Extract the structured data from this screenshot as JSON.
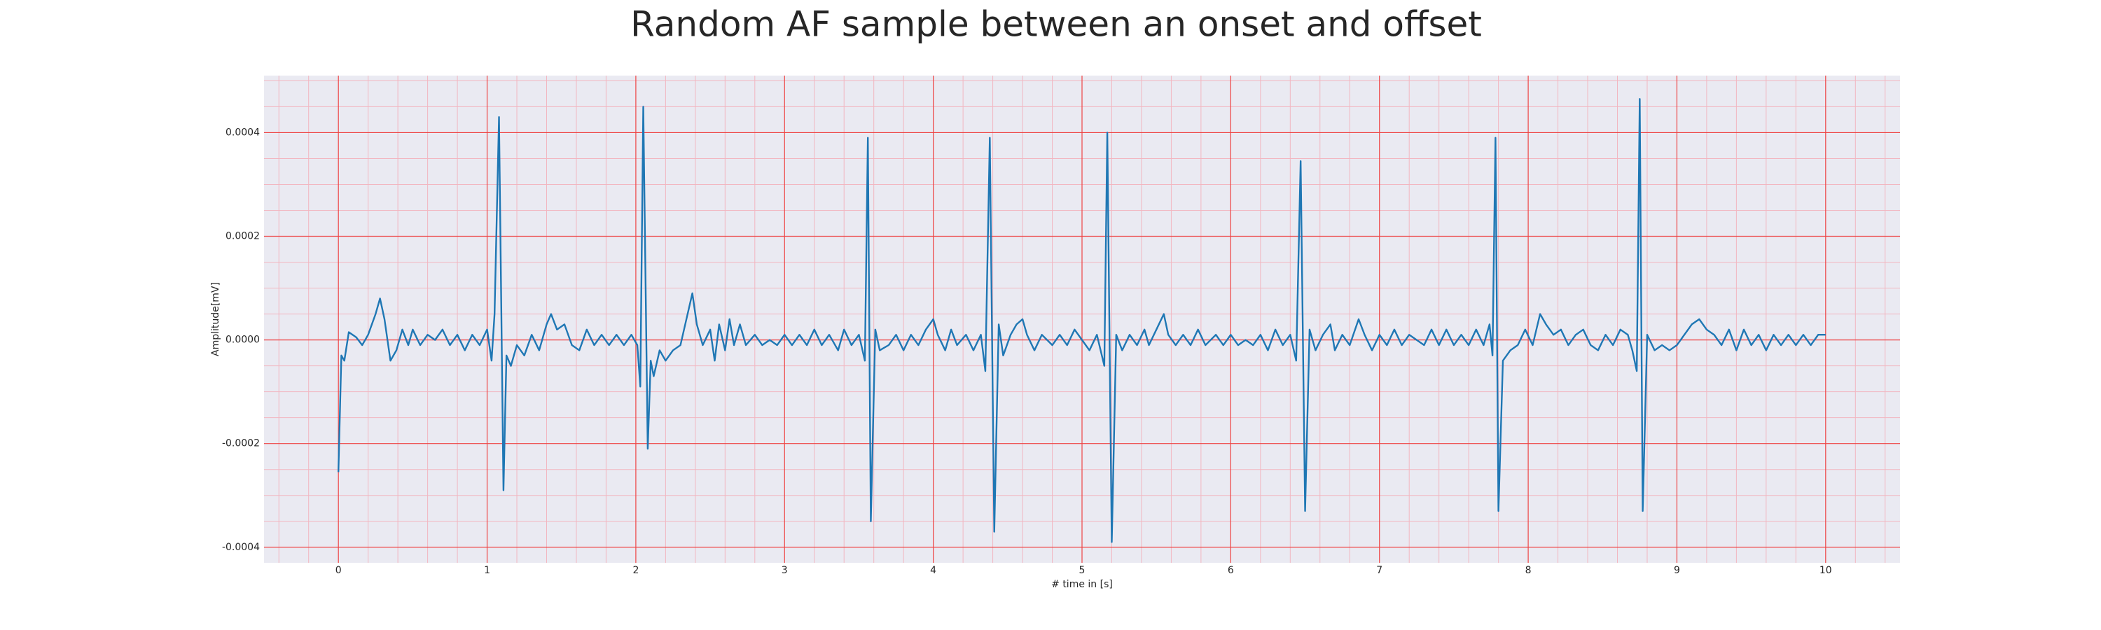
{
  "chart_data": {
    "type": "line",
    "title": "Random AF sample between an onset and offset",
    "xlabel": "# time in [s]",
    "ylabel": "Amplitude[mV]",
    "color": "#1f77b4",
    "grid": true,
    "minor_grid": true,
    "xlim": [
      -0.5,
      10.5
    ],
    "ylim": [
      -0.00043,
      0.00051
    ],
    "xticks": [
      0,
      1,
      2,
      3,
      4,
      5,
      6,
      7,
      8,
      9,
      10
    ],
    "yticks": [
      -0.0004,
      -0.0002,
      {
        "value": 0,
        "label": "0.0000"
      },
      0.0002,
      0.0004
    ],
    "xminorticks": [
      -0.4,
      -0.2,
      0.2,
      0.4,
      0.6,
      0.8,
      1.2,
      1.4,
      1.6,
      1.8,
      2.2,
      2.4,
      2.6,
      2.8,
      3.2,
      3.4,
      3.6,
      3.8,
      4.2,
      4.4,
      4.6,
      4.8,
      5.2,
      5.4,
      5.6,
      5.8,
      6.2,
      6.4,
      6.6,
      6.8,
      7.2,
      7.4,
      7.6,
      7.8,
      8.2,
      8.4,
      8.6,
      8.8,
      9.2,
      9.4,
      9.6,
      9.8,
      10.2,
      10.4
    ],
    "yminorticks": [
      -0.00035,
      -0.0003,
      -0.00025,
      -0.00015,
      -0.0001,
      -5e-05,
      5e-05,
      0.0001,
      0.00015,
      0.00025,
      0.0003,
      0.00035,
      0.00045,
      0.0005
    ],
    "x": [
      0,
      0.02,
      0.04,
      0.07,
      0.12,
      0.16,
      0.2,
      0.25,
      0.28,
      0.31,
      0.35,
      0.39,
      0.43,
      0.47,
      0.5,
      0.55,
      0.6,
      0.65,
      0.7,
      0.75,
      0.8,
      0.85,
      0.9,
      0.95,
      1.0,
      1.03,
      1.05,
      1.08,
      1.11,
      1.13,
      1.16,
      1.2,
      1.25,
      1.3,
      1.35,
      1.4,
      1.43,
      1.47,
      1.52,
      1.57,
      1.62,
      1.67,
      1.72,
      1.77,
      1.82,
      1.87,
      1.92,
      1.97,
      2.01,
      2.03,
      2.05,
      2.08,
      2.1,
      2.12,
      2.16,
      2.2,
      2.25,
      2.3,
      2.34,
      2.38,
      2.41,
      2.45,
      2.5,
      2.53,
      2.56,
      2.6,
      2.63,
      2.66,
      2.7,
      2.74,
      2.8,
      2.85,
      2.9,
      2.95,
      3.0,
      3.05,
      3.1,
      3.15,
      3.2,
      3.25,
      3.3,
      3.36,
      3.4,
      3.45,
      3.5,
      3.54,
      3.56,
      3.58,
      3.61,
      3.64,
      3.7,
      3.75,
      3.8,
      3.85,
      3.9,
      3.95,
      4.0,
      4.03,
      4.08,
      4.12,
      4.16,
      4.22,
      4.27,
      4.32,
      4.35,
      4.38,
      4.41,
      4.44,
      4.47,
      4.52,
      4.56,
      4.6,
      4.63,
      4.68,
      4.73,
      4.8,
      4.85,
      4.9,
      4.95,
      5.0,
      5.05,
      5.1,
      5.15,
      5.17,
      5.2,
      5.23,
      5.27,
      5.32,
      5.37,
      5.42,
      5.45,
      5.5,
      5.55,
      5.58,
      5.63,
      5.68,
      5.73,
      5.78,
      5.83,
      5.9,
      5.95,
      6.0,
      6.05,
      6.1,
      6.15,
      6.2,
      6.25,
      6.3,
      6.35,
      6.4,
      6.44,
      6.47,
      6.5,
      6.53,
      6.57,
      6.62,
      6.67,
      6.7,
      6.75,
      6.8,
      6.86,
      6.9,
      6.95,
      7.0,
      7.05,
      7.1,
      7.15,
      7.2,
      7.3,
      7.35,
      7.4,
      7.45,
      7.5,
      7.55,
      7.6,
      7.65,
      7.7,
      7.74,
      7.76,
      7.78,
      7.8,
      7.83,
      7.88,
      7.93,
      7.98,
      8.03,
      8.08,
      8.12,
      8.17,
      8.22,
      8.27,
      8.32,
      8.37,
      8.42,
      8.47,
      8.52,
      8.57,
      8.62,
      8.67,
      8.7,
      8.73,
      8.75,
      8.77,
      8.8,
      8.85,
      8.9,
      8.95,
      9.0,
      9.05,
      9.1,
      9.15,
      9.2,
      9.25,
      9.3,
      9.35,
      9.4,
      9.45,
      9.5,
      9.55,
      9.6,
      9.65,
      9.7,
      9.75,
      9.8,
      9.85,
      9.9,
      9.95,
      10.0
    ],
    "values": [
      -0.000255,
      -3e-05,
      -4e-05,
      1.5e-05,
      5e-06,
      -1e-05,
      1e-05,
      5e-05,
      8e-05,
      4e-05,
      -4e-05,
      -2e-05,
      2e-05,
      -1e-05,
      2e-05,
      -1e-05,
      1e-05,
      0,
      2e-05,
      -1e-05,
      1e-05,
      -2e-05,
      1e-05,
      -1e-05,
      2e-05,
      -4e-05,
      5e-05,
      0.00043,
      -0.00029,
      -3e-05,
      -5e-05,
      -1e-05,
      -3e-05,
      1e-05,
      -2e-05,
      3e-05,
      5e-05,
      2e-05,
      3e-05,
      -1e-05,
      -2e-05,
      2e-05,
      -1e-05,
      1e-05,
      -1e-05,
      1e-05,
      -1e-05,
      1e-05,
      -1e-05,
      -9e-05,
      0.00045,
      -0.00021,
      -4e-05,
      -7e-05,
      -2e-05,
      -4e-05,
      -2e-05,
      -1e-05,
      4e-05,
      9e-05,
      3e-05,
      -1e-05,
      2e-05,
      -4e-05,
      3e-05,
      -2e-05,
      4e-05,
      -1e-05,
      3e-05,
      -1e-05,
      1e-05,
      -1e-05,
      0,
      -1e-05,
      1e-05,
      -1e-05,
      1e-05,
      -1e-05,
      2e-05,
      -1e-05,
      1e-05,
      -2e-05,
      2e-05,
      -1e-05,
      1e-05,
      -4e-05,
      0.00039,
      -0.00035,
      2e-05,
      -2e-05,
      -1e-05,
      1e-05,
      -2e-05,
      1e-05,
      -1e-05,
      2e-05,
      4e-05,
      1e-05,
      -2e-05,
      2e-05,
      -1e-05,
      1e-05,
      -2e-05,
      1e-05,
      -6e-05,
      0.00039,
      -0.00037,
      3e-05,
      -3e-05,
      1e-05,
      3e-05,
      4e-05,
      1e-05,
      -2e-05,
      1e-05,
      -1e-05,
      1e-05,
      -1e-05,
      2e-05,
      0,
      -2e-05,
      1e-05,
      -5e-05,
      0.0004,
      -0.00039,
      1e-05,
      -2e-05,
      1e-05,
      -1e-05,
      2e-05,
      -1e-05,
      2e-05,
      5e-05,
      1e-05,
      -1e-05,
      1e-05,
      -1e-05,
      2e-05,
      -1e-05,
      1e-05,
      -1e-05,
      1e-05,
      -1e-05,
      0,
      -1e-05,
      1e-05,
      -2e-05,
      2e-05,
      -1e-05,
      1e-05,
      -4e-05,
      0.000345,
      -0.00033,
      2e-05,
      -2e-05,
      1e-05,
      3e-05,
      -2e-05,
      1e-05,
      -1e-05,
      4e-05,
      1e-05,
      -2e-05,
      1e-05,
      -1e-05,
      2e-05,
      -1e-05,
      1e-05,
      -1e-05,
      2e-05,
      -1e-05,
      2e-05,
      -1e-05,
      1e-05,
      -1e-05,
      2e-05,
      -1e-05,
      3e-05,
      -3e-05,
      0.00039,
      -0.00033,
      -4e-05,
      -2e-05,
      -1e-05,
      2e-05,
      -1e-05,
      5e-05,
      3e-05,
      1e-05,
      2e-05,
      -1e-05,
      1e-05,
      2e-05,
      -1e-05,
      -2e-05,
      1e-05,
      -1e-05,
      2e-05,
      1e-05,
      -2e-05,
      -6e-05,
      0.000465,
      -0.00033,
      1e-05,
      -2e-05,
      -1e-05,
      -2e-05,
      -1e-05,
      1e-05,
      3e-05,
      4e-05,
      2e-05,
      1e-05,
      -1e-05,
      2e-05,
      -2e-05,
      2e-05,
      -1e-05,
      1e-05,
      -2e-05,
      1e-05,
      -1e-05,
      1e-05,
      -1e-05,
      1e-05,
      -1e-05,
      1e-05,
      1e-05
    ]
  }
}
